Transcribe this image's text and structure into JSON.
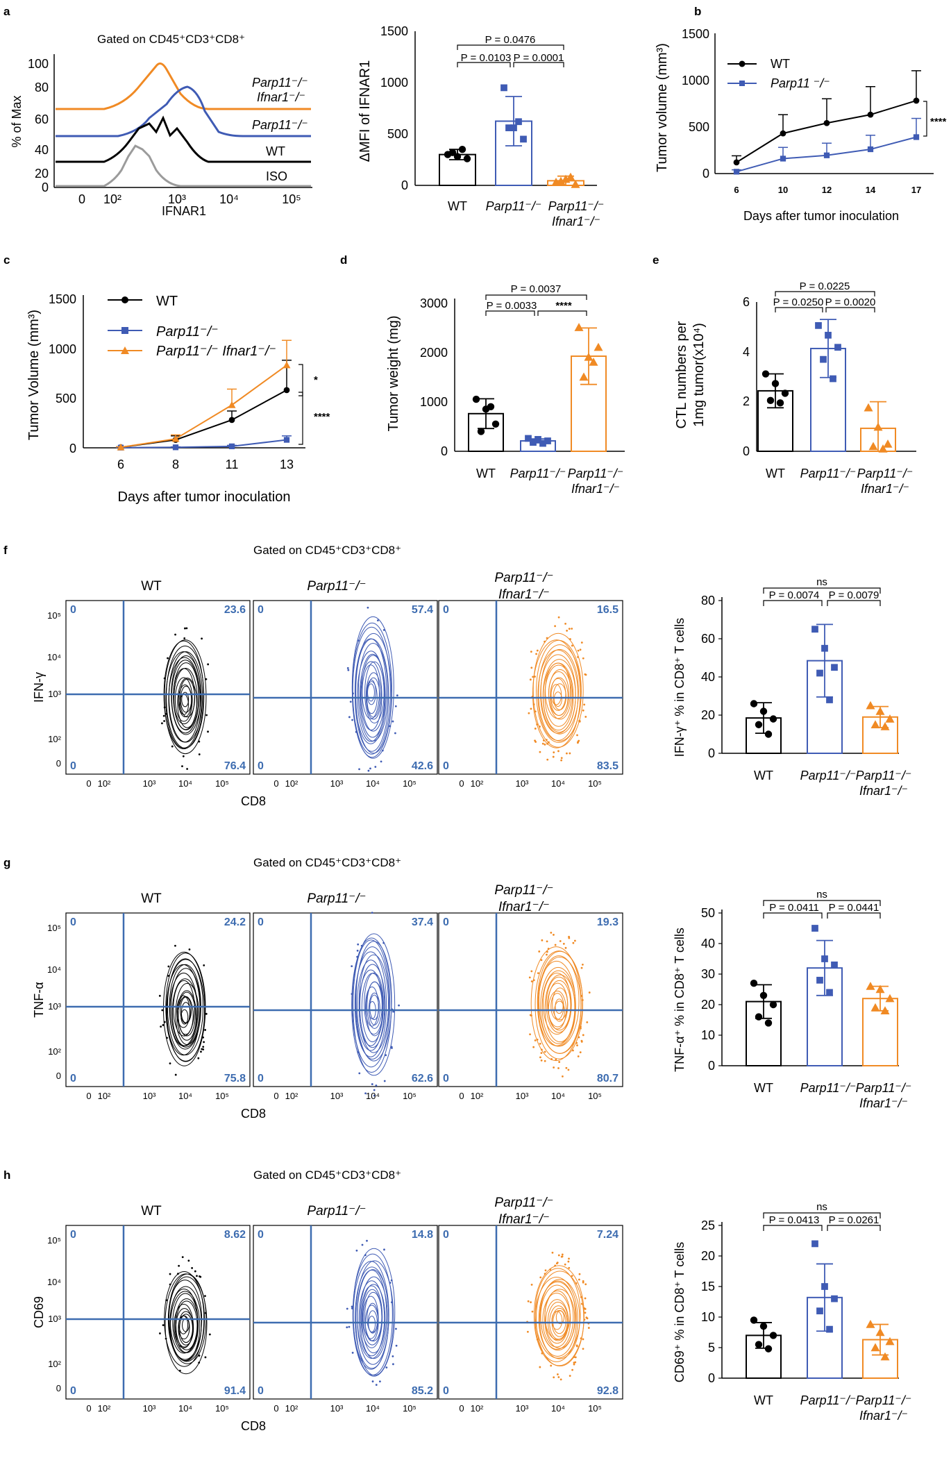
{
  "colors": {
    "wt": "#000000",
    "parp": "#3f5bb4",
    "dko": "#f08a24",
    "iso": "#9b9b9b",
    "gate": "#3d6cb0"
  },
  "a_hist": {
    "label": "a",
    "gate": "Gated on CD45⁺CD3⁺CD8⁺",
    "ylabel": "% of Max",
    "xlabel": "IFNAR1",
    "yticks": [
      "100",
      "80",
      "60",
      "40",
      "20",
      "0"
    ],
    "xticks": [
      "0",
      "10²",
      "10³",
      "10⁴",
      "10⁵"
    ],
    "traces": [
      "Parp11⁻/⁻",
      "Ifnar1⁻/⁻",
      "Parp11⁻/⁻",
      "WT",
      "ISO"
    ]
  },
  "a_bar": {
    "ylabel": "ΔMFI of IFNAR1",
    "yticks": [
      "0",
      "500",
      "1000",
      "1500"
    ],
    "groups": [
      "WT",
      "Parp11⁻/⁻",
      "Parp11⁻/⁻",
      "Ifnar1⁻/⁻"
    ],
    "pvals": [
      "P = 0.0476",
      "P = 0.0103",
      "P = 0.0001"
    ]
  },
  "b": {
    "label": "b",
    "ylabel": "Tumor volume (mm³)",
    "xlabel": "Days after tumor inoculation",
    "yticks": [
      "0",
      "500",
      "1000",
      "1500"
    ],
    "xticks": [
      "6",
      "10",
      "12",
      "14",
      "17"
    ],
    "legend": [
      "WT",
      "Parp11 ⁻/⁻"
    ],
    "sig": "****"
  },
  "c": {
    "label": "c",
    "ylabel": "Tumor Volume (mm³)",
    "xlabel": "Days after tumor inoculation",
    "yticks": [
      "0",
      "500",
      "1000",
      "1500"
    ],
    "xticks": [
      "6",
      "8",
      "11",
      "13"
    ],
    "legend": [
      "WT",
      "Parp11⁻/⁻",
      "Parp11⁻/⁻ Ifnar1⁻/⁻"
    ],
    "sig1": "*",
    "sig2": "****"
  },
  "d": {
    "label": "d",
    "ylabel": "Tumor weight (mg)",
    "yticks": [
      "0",
      "1000",
      "2000",
      "3000"
    ],
    "groups": [
      "WT",
      "Parp11⁻/⁻",
      "Parp11⁻/⁻",
      "Ifnar1⁻/⁻"
    ],
    "pvals": [
      "P = 0.0037",
      "P = 0.0033",
      "****"
    ]
  },
  "e": {
    "label": "e",
    "ylabel1": "CTL numbers per",
    "ylabel2": "1mg tumor(x10⁴)",
    "yticks": [
      "0",
      "2",
      "4",
      "6"
    ],
    "groups": [
      "WT",
      "Parp11⁻/⁻",
      "Parp11⁻/⁻",
      "Ifnar1⁻/⁻"
    ],
    "pvals": [
      "P = 0.0225",
      "P = 0.0250",
      "P = 0.0020"
    ]
  },
  "f": {
    "label": "f",
    "gate": "Gated on CD45⁺CD3⁺CD8⁺",
    "heads": [
      "WT",
      "Parp11⁻/⁻",
      "Parp11⁻/⁻",
      "Ifnar1⁻/⁻"
    ],
    "ylabel": "IFN-γ",
    "xlabel": "CD8",
    "q": [
      [
        "0",
        "23.6",
        "0",
        "76.4"
      ],
      [
        "0",
        "57.4",
        "0",
        "42.6"
      ],
      [
        "0",
        "16.5",
        "0",
        "83.5"
      ]
    ],
    "bar_ylabel": "IFN-γ⁺ % in CD8⁺ T cells",
    "bar_yticks": [
      "0",
      "20",
      "40",
      "60",
      "80"
    ],
    "groups": [
      "WT",
      "Parp11⁻/⁻",
      "Parp11⁻/⁻",
      "Ifnar1⁻/⁻"
    ],
    "pvals": [
      "ns",
      "P = 0.0074",
      "P = 0.0079"
    ]
  },
  "g": {
    "label": "g",
    "gate": "Gated on CD45⁺CD3⁺CD8⁺",
    "heads": [
      "WT",
      "Parp11⁻/⁻",
      "Parp11⁻/⁻",
      "Ifnar1⁻/⁻"
    ],
    "ylabel": "TNF-α",
    "xlabel": "CD8",
    "q": [
      [
        "0",
        "24.2",
        "0",
        "75.8"
      ],
      [
        "0",
        "37.4",
        "0",
        "62.6"
      ],
      [
        "0",
        "19.3",
        "0",
        "80.7"
      ]
    ],
    "bar_ylabel": "TNF-α⁺ % in CD8⁺ T cells",
    "bar_yticks": [
      "0",
      "10",
      "20",
      "30",
      "40",
      "50"
    ],
    "groups": [
      "WT",
      "Parp11⁻/⁻",
      "Parp11⁻/⁻",
      "Ifnar1⁻/⁻"
    ],
    "pvals": [
      "ns",
      "P = 0.0411",
      "P = 0.0441"
    ]
  },
  "h": {
    "label": "h",
    "gate": "Gated on CD45⁺CD3⁺CD8⁺",
    "heads": [
      "WT",
      "Parp11⁻/⁻",
      "Parp11⁻/⁻",
      "Ifnar1⁻/⁻"
    ],
    "ylabel": "CD69",
    "xlabel": "CD8",
    "q": [
      [
        "0",
        "8.62",
        "0",
        "91.4"
      ],
      [
        "0",
        "14.8",
        "0",
        "85.2"
      ],
      [
        "0",
        "7.24",
        "0",
        "92.8"
      ]
    ],
    "bar_ylabel": "CD69⁺ % in CD8⁺ T cells",
    "bar_yticks": [
      "0",
      "5",
      "10",
      "15",
      "20",
      "25"
    ],
    "groups": [
      "WT",
      "Parp11⁻/⁻",
      "Parp11⁻/⁻",
      "Ifnar1⁻/⁻"
    ],
    "pvals": [
      "ns",
      "P = 0.0413",
      "P = 0.0261"
    ]
  },
  "flow_yticks": [
    "10⁵",
    "10⁴",
    "10³",
    "10²",
    "0"
  ],
  "flow_xticks": [
    "0",
    "10²",
    "10³",
    "10⁴",
    "10⁵"
  ],
  "chart_data": [
    {
      "type": "line",
      "title": "a histogram",
      "xlabel": "IFNAR1",
      "ylabel": "% of Max",
      "series": [
        "Parp11-/- Ifnar1-/-",
        "Parp11-/-",
        "WT",
        "ISO"
      ]
    },
    {
      "type": "bar",
      "ylabel": "ΔMFI of IFNAR1",
      "categories": [
        "WT",
        "Parp11-/-",
        "Parp11-/- Ifnar1-/-"
      ],
      "values": [
        300,
        625,
        45
      ],
      "errors": [
        50,
        240,
        45
      ],
      "ylim": [
        0,
        1500
      ],
      "points": [
        [
          300,
          280,
          260,
          320,
          350
        ],
        [
          950,
          560,
          450,
          560,
          620
        ],
        [
          30,
          60,
          10,
          40,
          80
        ]
      ]
    },
    {
      "type": "line",
      "ylabel": "Tumor volume (mm³)",
      "xlabel": "Days after tumor inoculation",
      "x": [
        6,
        10,
        12,
        14,
        17
      ],
      "ylim": [
        0,
        1500
      ],
      "series": [
        {
          "name": "WT",
          "values": [
            120,
            430,
            540,
            630,
            780
          ],
          "errors": [
            70,
            200,
            260,
            300,
            320
          ]
        },
        {
          "name": "Parp11 -/-",
          "values": [
            20,
            160,
            195,
            260,
            390
          ],
          "errors": [
            20,
            120,
            130,
            150,
            200
          ]
        }
      ]
    },
    {
      "type": "line",
      "ylabel": "Tumor Volume (mm³)",
      "xlabel": "Days after tumor inoculation",
      "x": [
        6,
        8,
        11,
        13
      ],
      "ylim": [
        0,
        1500
      ],
      "series": [
        {
          "name": "WT",
          "values": [
            5,
            80,
            280,
            580
          ],
          "errors": [
            5,
            40,
            90,
            300
          ]
        },
        {
          "name": "Parp11-/-",
          "values": [
            2,
            5,
            15,
            80
          ],
          "errors": [
            2,
            5,
            10,
            40
          ]
        },
        {
          "name": "Parp11-/- Ifnar1-/-",
          "values": [
            5,
            90,
            430,
            830
          ],
          "errors": [
            5,
            40,
            160,
            250
          ]
        }
      ]
    },
    {
      "type": "bar",
      "ylabel": "Tumor weight (mg)",
      "categories": [
        "WT",
        "Parp11-/-",
        "Parp11-/- Ifnar1-/-"
      ],
      "values": [
        760,
        210,
        1920
      ],
      "errors": [
        300,
        40,
        570
      ],
      "ylim": [
        0,
        3000
      ],
      "points": [
        [
          1050,
          850,
          550,
          400,
          900
        ],
        [
          260,
          240,
          210,
          180,
          160
        ],
        [
          2500,
          1900,
          2100,
          1500,
          1800
        ]
      ]
    },
    {
      "type": "bar",
      "ylabel": "CTL numbers per 1mg tumor(x10⁴)",
      "categories": [
        "WT",
        "Parp11-/-",
        "Parp11-/- Ifnar1-/-"
      ],
      "values": [
        2.5,
        4.25,
        0.95
      ],
      "errors": [
        0.7,
        1.2,
        1.1
      ],
      "ylim": [
        0,
        6
      ],
      "points": [
        [
          3.2,
          2.8,
          2.4,
          2.1,
          2.0
        ],
        [
          5.2,
          4.8,
          4.3,
          3.8,
          3.0
        ],
        [
          1.8,
          1.0,
          0.3,
          0.2,
          0.1
        ]
      ]
    },
    {
      "type": "bar",
      "ylabel": "IFN-γ⁺ % in CD8⁺ T cells",
      "categories": [
        "WT",
        "Parp11-/-",
        "Parp11-/- Ifnar1-/-"
      ],
      "values": [
        18.5,
        48.5,
        19
      ],
      "errors": [
        8,
        19,
        5.5
      ],
      "ylim": [
        0,
        80
      ],
      "points": [
        [
          26,
          22,
          18,
          15,
          10
        ],
        [
          65,
          55,
          45,
          42,
          28
        ],
        [
          25,
          22,
          18,
          15,
          14
        ]
      ]
    },
    {
      "type": "bar",
      "ylabel": "TNF-α⁺ % in CD8⁺ T cells",
      "categories": [
        "WT",
        "Parp11-/-",
        "Parp11-/- Ifnar1-/-"
      ],
      "values": [
        21,
        32,
        22
      ],
      "errors": [
        5.5,
        9,
        4
      ],
      "ylim": [
        0,
        50
      ],
      "points": [
        [
          27,
          23,
          20,
          16,
          14
        ],
        [
          45,
          35,
          33,
          28,
          24
        ],
        [
          26,
          25,
          22,
          19,
          18
        ]
      ]
    },
    {
      "type": "bar",
      "ylabel": "CD69⁺ % in CD8⁺ T cells",
      "categories": [
        "WT",
        "Parp11-/-",
        "Parp11-/- Ifnar1-/-"
      ],
      "values": [
        7,
        13.2,
        6.3
      ],
      "errors": [
        2.1,
        5.5,
        2.5
      ],
      "ylim": [
        0,
        25
      ],
      "points": [
        [
          9.5,
          8.5,
          7,
          5.5,
          4.8
        ],
        [
          22,
          15,
          13,
          11,
          8
        ],
        [
          8.8,
          7.5,
          6,
          5,
          3.5
        ]
      ]
    }
  ]
}
